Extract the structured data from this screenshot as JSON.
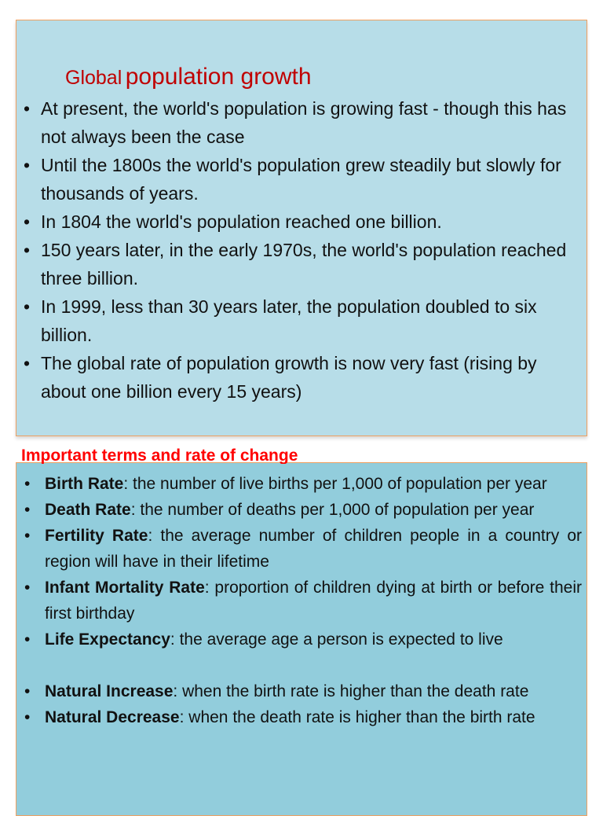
{
  "slide1": {
    "title_small": "Global",
    "title_big": "population growth",
    "bullets": [
      "At present, the world's population is growing fast - though this has not always been the case",
      "Until the 1800s the world's population grew steadily but slowly for thousands of years.",
      "In 1804 the world's population reached one billion.",
      "150 years later, in the early 1970s, the world's population reached three billion.",
      "In 1999, less than 30 years later, the population doubled to six billion.",
      "The global rate of population growth is now very fast (rising by about one billion every 15 years)"
    ]
  },
  "slide2": {
    "heading": "Important terms  and rate of change",
    "terms": [
      {
        "term": "Birth Rate",
        "definition": ": the number of live births per 1,000 of population per year"
      },
      {
        "term": "Death Rate",
        "definition": ": the number of deaths per 1,000 of population per year"
      },
      {
        "term": " Fertility Rate",
        "definition": ": the average number of children people in a country or region will have in their lifetime"
      },
      {
        "term": " Infant Mortality Rate",
        "definition": ": proportion of children dying at birth or before their first birthday"
      },
      {
        "term": "Life Expectancy",
        "definition": ": the average age a person is expected to live"
      },
      {
        "term": " Natural Increase",
        "definition": ": when the birth rate is higher than the death rate"
      },
      {
        "term": "Natural Decrease",
        "definition": ": when the death rate is higher than the birth rate"
      }
    ]
  },
  "colors": {
    "box1_bg": "#b7dde8",
    "box2_bg": "#92cddc",
    "title_red": "#c00000",
    "heading_red": "#ff0000",
    "border_orange": "#f0a060"
  }
}
